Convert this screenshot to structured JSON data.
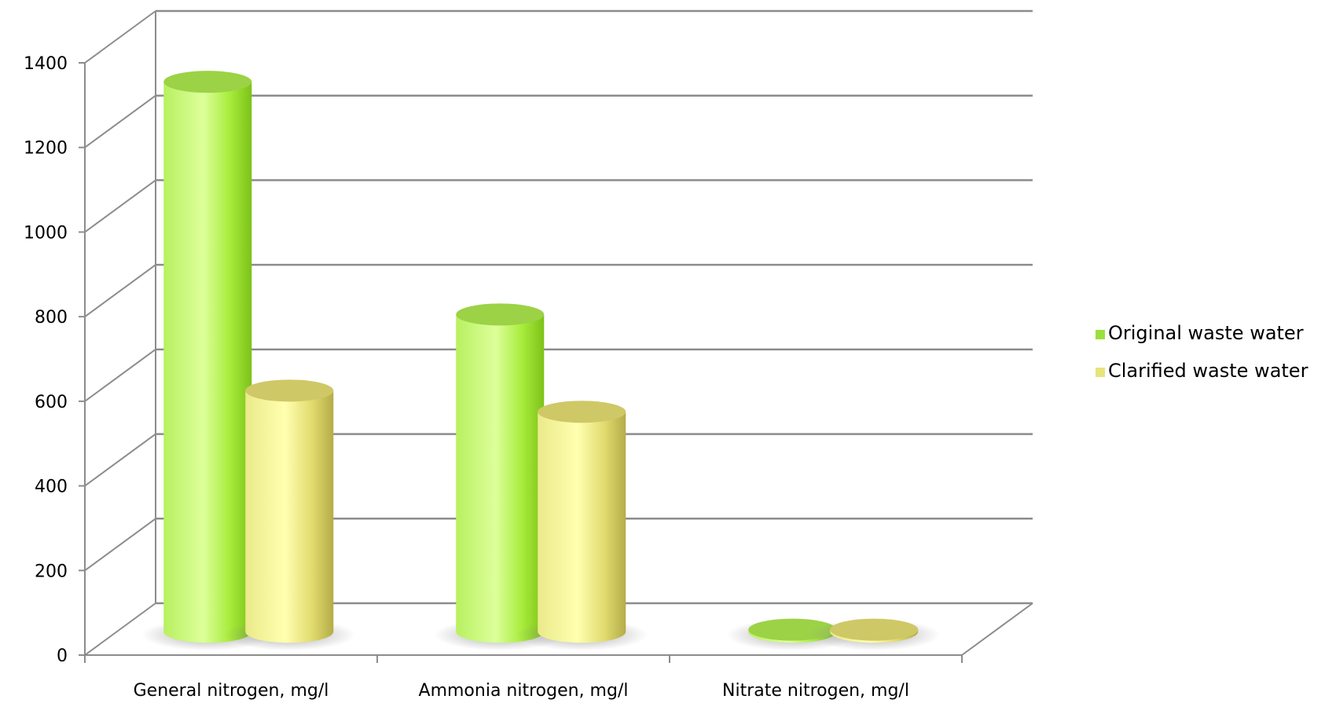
{
  "chart_data": {
    "type": "bar",
    "title": "",
    "xlabel": "",
    "ylabel": "",
    "ylim": [
      0,
      1400
    ],
    "yticks": [
      0,
      200,
      400,
      600,
      800,
      1000,
      1200,
      1400
    ],
    "grid": true,
    "legend_position": "right",
    "categories": [
      "General nitrogen, mg/l",
      "Ammonia nitrogen, mg/l",
      "Nitrate nitrogen, mg/l"
    ],
    "series": [
      {
        "name": "Original waste water",
        "values": [
          1300,
          750,
          5
        ],
        "color": "#9be03a"
      },
      {
        "name": "Clarified waste water",
        "values": [
          570,
          520,
          5
        ],
        "color": "#e8e47a"
      }
    ]
  }
}
